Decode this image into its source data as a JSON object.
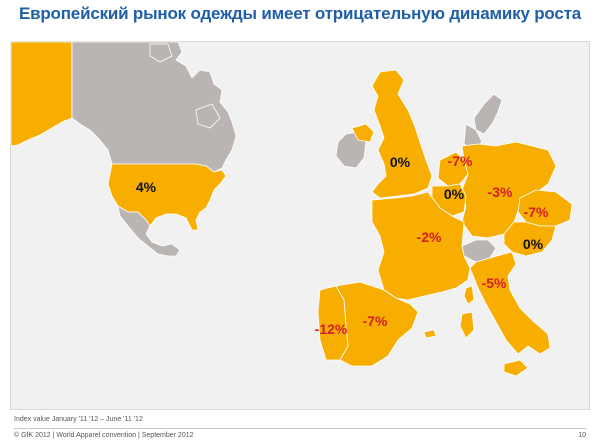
{
  "slide": {
    "title": "Европейский рынок одежды имеет отрицательную динамику роста",
    "footnote": "Index value January '11 '12 – June '11 '12",
    "copyright": "© GfK 2012 | World Apparel convention | September 2012",
    "page_number": "10"
  },
  "colors": {
    "highlight": "#f7ae00",
    "other_land": "#bab5b2",
    "panel": "#f1f1f1",
    "negative_text": "#d41f26",
    "positive_text": "#111111"
  },
  "regions": [
    {
      "id": "usa",
      "label": "4%",
      "value": 4
    },
    {
      "id": "uk",
      "label": "0%",
      "value": 0
    },
    {
      "id": "netherlands",
      "label": "-7%",
      "value": -7
    },
    {
      "id": "belgium",
      "label": "0%",
      "value": 0
    },
    {
      "id": "germany",
      "label": "-3%",
      "value": -3
    },
    {
      "id": "czech-republic",
      "label": "-7%",
      "value": -7
    },
    {
      "id": "austria",
      "label": "0%",
      "value": 0
    },
    {
      "id": "france",
      "label": "-2%",
      "value": -2
    },
    {
      "id": "italy",
      "label": "-5%",
      "value": -5
    },
    {
      "id": "spain",
      "label": "-7%",
      "value": -7
    },
    {
      "id": "portugal",
      "label": "-12%",
      "value": -12
    }
  ]
}
